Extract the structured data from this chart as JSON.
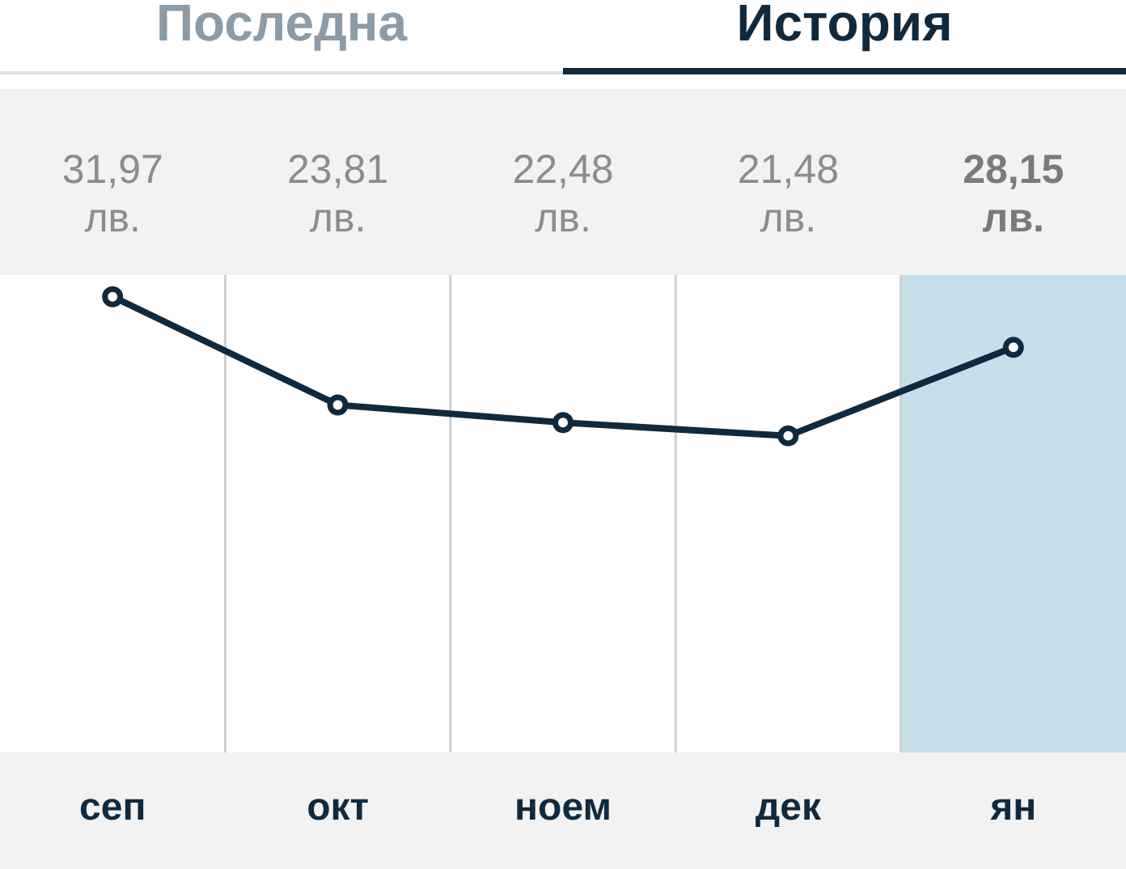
{
  "chart_data": {
    "type": "line",
    "annotations": [
      "Последна",
      "История"
    ],
    "categories": [
      "сеп",
      "окт",
      "ноем",
      "дек",
      "ян"
    ],
    "series": [
      {
        "color": "#0f2a3f",
        "values": [
          31.97,
          23.81,
          22.48,
          21.48,
          28.15
        ],
        "value_labels": [
          "31,97 лв.",
          "23,81 лв.",
          "22,48 лв.",
          "21,48 лв.",
          "28,15 лв."
        ]
      }
    ],
    "ylim": [
      -2.4,
      33.6
    ],
    "tick_labels": "x",
    "grid": "x",
    "marker": "circle",
    "bands": [
      {
        "axis": "x",
        "from": "ян",
        "to": "ян",
        "color": "#c6dfea"
      }
    ]
  }
}
